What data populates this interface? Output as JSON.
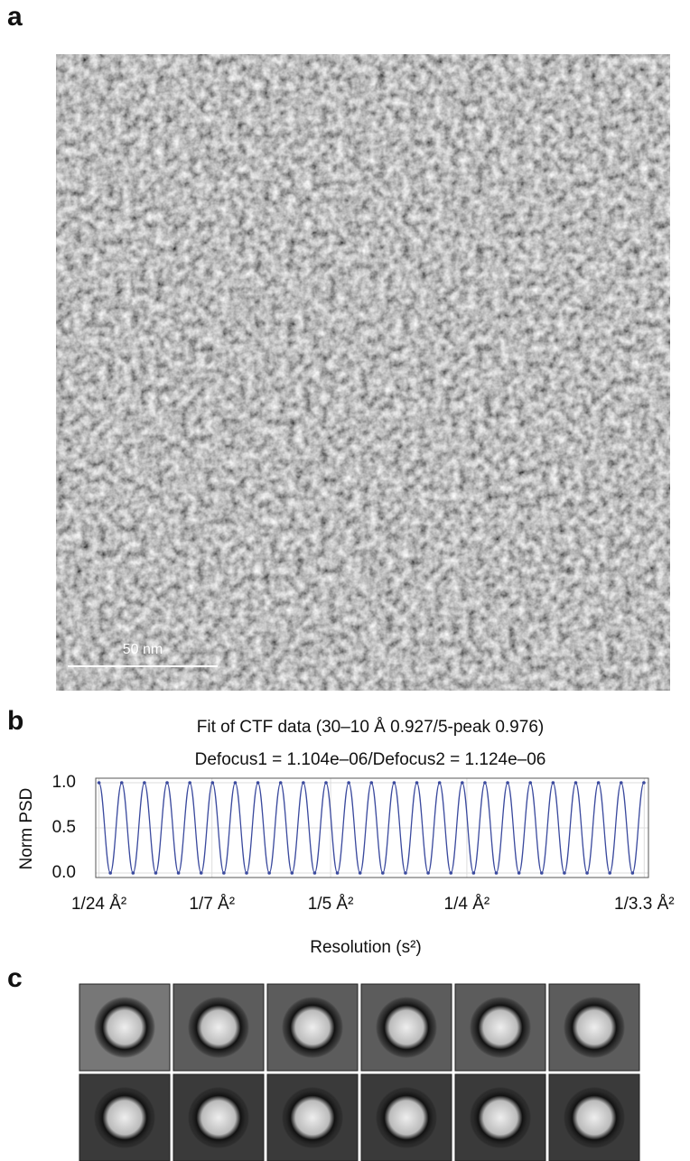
{
  "panel_labels": [
    "a",
    "b",
    "c"
  ],
  "scale_bar_label": "50 nm",
  "chart_data": {
    "type": "line",
    "title": "Fit of CTF data (30–10 Å 0.927/5-peak 0.976)",
    "subtitle": "Defocus1 = 1.104e–06/Defocus2 = 1.124e–06",
    "y_label": "Norm PSD",
    "x_label": "Resolution (s²)",
    "xlim": [
      0.0012,
      0.0925
    ],
    "ylim": [
      -0.05,
      1.05
    ],
    "xticks": [
      {
        "value": 0.00174,
        "label": "1/24 Å²"
      },
      {
        "value": 0.0204,
        "label": "1/7 Å²"
      },
      {
        "value": 0.04,
        "label": "1/5 Å²"
      },
      {
        "value": 0.0625,
        "label": "1/4 Å²"
      },
      {
        "value": 0.0918,
        "label": "1/3.3 Å²"
      }
    ],
    "yticks": [
      {
        "value": 0,
        "label": "0.0"
      },
      {
        "value": 0.5,
        "label": "0.5"
      },
      {
        "value": 1,
        "label": "1.0"
      }
    ],
    "grid": true,
    "x": [
      0.00174,
      0.003615,
      0.00549,
      0.007365,
      0.00924,
      0.011115,
      0.01299,
      0.014865,
      0.01674,
      0.018615,
      0.02049,
      0.022365,
      0.02424,
      0.026115,
      0.02799,
      0.029865,
      0.03174,
      0.033615,
      0.03549,
      0.037365,
      0.03924,
      0.041115,
      0.04299,
      0.044865,
      0.04674,
      0.048615,
      0.05049,
      0.052365,
      0.05424,
      0.056115,
      0.05799,
      0.059865,
      0.06174,
      0.063615,
      0.06549,
      0.067365,
      0.06924,
      0.071115,
      0.07299,
      0.074865,
      0.07674,
      0.078615,
      0.08049,
      0.082365,
      0.08424,
      0.086115,
      0.08799,
      0.089865,
      0.09174
    ],
    "series": [
      {
        "color": "#3b4a9e",
        "values": [
          1,
          0,
          1,
          0,
          1,
          0,
          1,
          0,
          1,
          0,
          1,
          0,
          1,
          0,
          1,
          0,
          1,
          0,
          1,
          0,
          1,
          0,
          1,
          0,
          1,
          0,
          1,
          0,
          1,
          0,
          1,
          0,
          1,
          0,
          1,
          0,
          1,
          0,
          1,
          0,
          1,
          0,
          1,
          0,
          1,
          0,
          1,
          0,
          1
        ]
      }
    ]
  }
}
